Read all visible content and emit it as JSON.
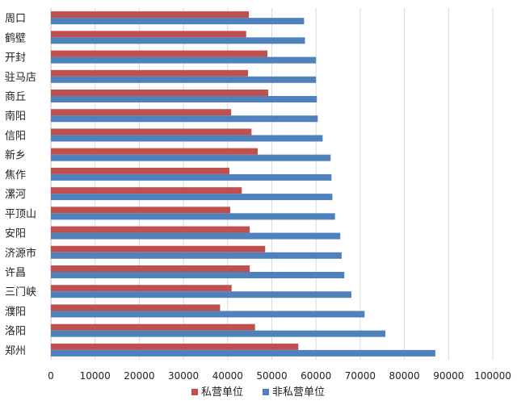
{
  "chart_data": {
    "type": "bar",
    "orientation": "horizontal",
    "title": "",
    "xlabel": "",
    "ylabel": "",
    "categories": [
      "周口",
      "鹤壁",
      "开封",
      "驻马店",
      "商丘",
      "南阳",
      "信阳",
      "新乡",
      "焦作",
      "漯河",
      "平顶山",
      "安阳",
      "济源市",
      "许昌",
      "三门峡",
      "濮阳",
      "洛阳",
      "郑州"
    ],
    "series": [
      {
        "name": "私营单位",
        "color": "#c0504d",
        "values": [
          44800,
          44200,
          49000,
          44600,
          49200,
          40800,
          45400,
          46800,
          40400,
          43200,
          40600,
          45000,
          48500,
          45000,
          40900,
          38300,
          46200,
          56000
        ]
      },
      {
        "name": "非私营单位",
        "color": "#4f81bd",
        "values": [
          57300,
          57500,
          60000,
          60000,
          60200,
          60400,
          61500,
          63300,
          63500,
          63700,
          64300,
          65500,
          65800,
          66400,
          68000,
          71000,
          75700,
          87000
        ]
      }
    ],
    "xlim": [
      0,
      100000
    ],
    "xticks": [
      "0",
      "10000",
      "20000",
      "30000",
      "40000",
      "50000",
      "60000",
      "70000",
      "80000",
      "90000",
      "100000"
    ],
    "grid": true,
    "legend_position": "bottom"
  }
}
